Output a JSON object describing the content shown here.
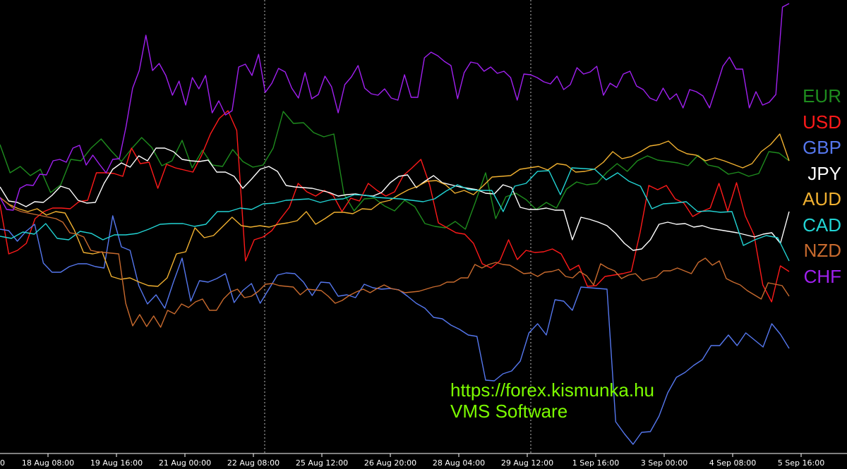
{
  "chart_data": {
    "type": "line",
    "title": "",
    "xlabel": "",
    "ylabel": "",
    "x_tick_labels": [
      "18 Aug 08:00",
      "19 Aug 16:00",
      "21 Aug 00:00",
      "22 Aug 08:00",
      "25 Aug 12:00",
      "26 Aug 20:00",
      "28 Aug 04:00",
      "29 Aug 12:00",
      "1 Sep 16:00",
      "3 Sep 00:00",
      "4 Sep 08:00",
      "5 Sep 16:00"
    ],
    "x_tick_partial_left": "0",
    "grid": "none",
    "legend_position": "right",
    "series": [
      {
        "name": "EUR",
        "color": "#1e8c1e",
        "values": [
          205,
          245,
          236,
          249,
          240,
          273,
          262,
          226,
          228,
          210,
          197,
          214,
          229,
          211,
          195,
          209,
          235,
          228,
          199,
          238,
          213,
          234,
          236,
          212,
          229,
          237,
          234,
          210,
          158,
          175,
          174,
          188,
          194,
          190,
          275,
          299,
          282,
          281,
          292,
          299,
          284,
          293,
          317,
          321,
          323,
          314,
          325,
          286,
          245,
          310,
          279,
          274,
          283,
          297,
          287,
          295,
          268,
          258,
          262,
          260,
          244,
          232,
          243,
          228,
          221,
          227,
          229,
          231,
          235,
          220,
          234,
          237,
          247,
          244,
          250,
          246,
          215,
          217,
          228
        ]
      },
      {
        "name": "USD",
        "color": "#ff1a1a",
        "values": [
          290,
          360,
          355,
          345,
          310,
          300,
          295,
          295,
          296,
          286,
          284,
          245,
          245,
          246,
          250,
          210,
          232,
          230,
          267,
          233,
          238,
          241,
          244,
          220,
          190,
          168,
          157,
          185,
          370,
          340,
          336,
          327,
          310,
          294,
          260,
          272,
          278,
          270,
          277,
          300,
          281,
          285,
          260,
          270,
          278,
          272,
          249,
          238,
          226,
          262,
          316,
          323,
          330,
          332,
          345,
          374,
          380,
          370,
          340,
          368,
          355,
          358,
          357,
          353,
          360,
          383,
          376,
          406,
          405,
          392,
          390,
          388,
          385,
          330,
          263,
          269,
          263,
          282,
          288,
          307,
          300,
          295,
          260,
          300,
          259,
          306,
          333,
          404,
          428,
          377,
          385
        ]
      },
      {
        "name": "GBP",
        "color": "#5577ee",
        "values": [
          325,
          327,
          342,
          328,
          318,
          373,
          386,
          386,
          378,
          374,
          374,
          378,
          380,
          306,
          350,
          355,
          405,
          431,
          418,
          437,
          400,
          366,
          427,
          398,
          400,
          395,
          388,
          429,
          412,
          402,
          430,
          410,
          390,
          387,
          388,
          400,
          419,
          400,
          401,
          420,
          418,
          422,
          403,
          408,
          410,
          409,
          411,
          420,
          430,
          437,
          450,
          452,
          461,
          467,
          475,
          477,
          539,
          540,
          530,
          526,
          512,
          472,
          459,
          475,
          425,
          427,
          440,
          407,
          408,
          409,
          410,
          598,
          615,
          630,
          613,
          612,
          590,
          557,
          535,
          528,
          518,
          510,
          490,
          490,
          475,
          490,
          472,
          482,
          492,
          459,
          474,
          494
        ]
      },
      {
        "name": "JPY",
        "color": "#ffffff",
        "values": [
          265,
          285,
          287,
          293,
          286,
          287,
          277,
          264,
          268,
          284,
          288,
          287,
          260,
          240,
          231,
          237,
          221,
          228,
          210,
          210,
          215,
          226,
          228,
          229,
          227,
          244,
          244,
          250,
          267,
          254,
          240,
          236,
          243,
          263,
          265,
          266,
          267,
          270,
          273,
          278,
          276,
          275,
          277,
          278,
          273,
          259,
          250,
          248,
          266,
          257,
          249,
          259,
          262,
          265,
          267,
          269,
          274,
          275,
          262,
          266,
          294,
          297,
          297,
          295,
          298,
          298,
          340,
          308,
          311,
          315,
          320,
          331,
          345,
          355,
          353,
          340,
          318,
          315,
          318,
          317,
          322,
          320,
          324,
          326,
          328,
          330,
          333,
          336,
          332,
          330,
          345,
          300
        ]
      },
      {
        "name": "AUD",
        "color": "#f0b030",
        "values": [
          280,
          290,
          296,
          300,
          296,
          305,
          300,
          302,
          326,
          358,
          360,
          357,
          392,
          396,
          394,
          400,
          405,
          406,
          394,
          360,
          357,
          323,
          337,
          334,
          321,
          308,
          320,
          322,
          320,
          322,
          318,
          316,
          313,
          300,
          318,
          310,
          301,
          301,
          303,
          296,
          297,
          287,
          284,
          276,
          269,
          264,
          257,
          256,
          262,
          274,
          270,
          276,
          264,
          251,
          250,
          249,
          240,
          238,
          236,
          241,
          232,
          234,
          244,
          243,
          240,
          230,
          215,
          225,
          222,
          215,
          207,
          205,
          200,
          212,
          218,
          220,
          228,
          224,
          228,
          233,
          238,
          232,
          215,
          205,
          190,
          228
        ]
      },
      {
        "name": "CAD",
        "color": "#22d4d4",
        "values": [
          335,
          338,
          329,
          332,
          317,
          338,
          340,
          328,
          331,
          340,
          333,
          333,
          331,
          325,
          318,
          317,
          317,
          321,
          318,
          300,
          300,
          295,
          297,
          289,
          288,
          284,
          283,
          282,
          287,
          283,
          282,
          276,
          277,
          280,
          281,
          282,
          284,
          286,
          282,
          271,
          262,
          269,
          270,
          270,
          300,
          264,
          260,
          243,
          242,
          276,
          238,
          239,
          240,
          255,
          245,
          257,
          264,
          296,
          289,
          288,
          286,
          300,
          299,
          301,
          300,
          348,
          340,
          334,
          337,
          370
        ]
      },
      {
        "name": "NZD",
        "color": "#c86a2e",
        "values": [
          280,
          288,
          296,
          300,
          302,
          304,
          306,
          308,
          310,
          315,
          330,
          332,
          336,
          355,
          357,
          358,
          359,
          360,
          430,
          462,
          446,
          463,
          448,
          464,
          440,
          445,
          431,
          436,
          428,
          424,
          440,
          440,
          424,
          414,
          410,
          422,
          420,
          413,
          403,
          402,
          405,
          406,
          407,
          418,
          410,
          411,
          412,
          420,
          430,
          426,
          419,
          414,
          410,
          415,
          409,
          404,
          409,
          411,
          415,
          414,
          413,
          410,
          407,
          405,
          400,
          400,
          394,
          394,
          375,
          380,
          375,
          372,
          375,
          376,
          382,
          388,
          387,
          392,
          386,
          385,
          382,
          392,
          394,
          385,
          391,
          404,
          374,
          380,
          384,
          395,
          390,
          388,
          398,
          395,
          393,
          384,
          384,
          380,
          384,
          388,
          372,
          366,
          376,
          370,
          395,
          400,
          404,
          412,
          418,
          424,
          401,
          403,
          405,
          420
        ]
      },
      {
        "name": "CHF",
        "color": "#a020f0",
        "values": [
          280,
          297,
          298,
          267,
          262,
          263,
          247,
          248,
          228,
          226,
          230,
          210,
          206,
          234,
          220,
          233,
          245,
          226,
          225,
          180,
          125,
          100,
          50,
          100,
          90,
          107,
          135,
          115,
          149,
          110,
          126,
          107,
          160,
          143,
          163,
          157,
          95,
          91,
          107,
          77,
          131,
          118,
          97,
          102,
          125,
          139,
          103,
          140,
          134,
          108,
          123,
          160,
          120,
          109,
          93,
          125,
          133,
          135,
          126,
          139,
          142,
          106,
          138,
          138,
          82,
          74,
          79,
          87,
          93,
          140,
          103,
          88,
          90,
          101,
          95,
          104,
          101,
          110,
          142,
          105,
          106,
          110,
          116,
          119,
          108,
          127,
          120,
          96,
          105,
          102,
          94,
          135,
          118,
          124,
          105,
          101,
          122,
          127,
          139,
          143,
          125,
          141,
          133,
          153,
          127,
          130,
          136,
          153,
          124,
          94,
          81,
          98,
          98,
          153,
          130,
          149,
          145,
          134,
          10,
          5
        ]
      }
    ],
    "watermark": {
      "url": "https://forex.kismunka.hu",
      "brand": "VMS Software"
    }
  }
}
